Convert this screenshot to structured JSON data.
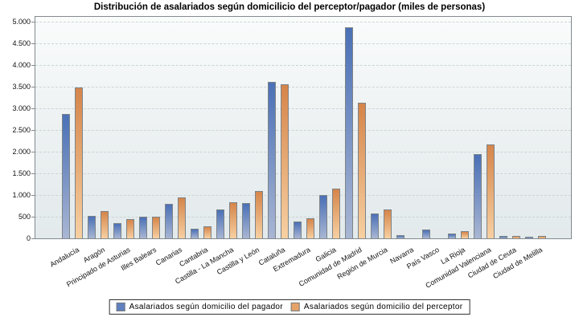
{
  "title": "Distribución de asalariados según domicilicio del perceptor/pagador (miles de personas)",
  "colors": {
    "bar_pagador_top": "#4a70b6",
    "bar_pagador_bottom": "#a9b6d3",
    "bar_perceptor_top": "#d5854a",
    "bar_perceptor_bottom": "#f7d0a2",
    "legend_pagador": "#6080bf",
    "legend_perceptor": "#e5a268",
    "bar_border": "#7d8488",
    "plot_border": "#828a8e",
    "gridline": "#ccd4d6"
  },
  "legend": {
    "items": [
      {
        "label": "Asalariados según domicilio del pagador"
      },
      {
        "label": "Asalariados según domicilio del perceptor"
      }
    ]
  },
  "y_axis": {
    "tick_labels": [
      "0",
      "500",
      "1.000",
      "1.500",
      "2.000",
      "2.500",
      "3.000",
      "3.500",
      "4.000",
      "4.500",
      "5.000"
    ],
    "min": 0,
    "max": 5000,
    "step": 500
  },
  "chart_data": {
    "type": "bar",
    "title": "Distribución de asalariados según domicilicio del perceptor/pagador (miles de personas)",
    "xlabel": "",
    "ylabel": "miles de personas",
    "ylim": [
      0,
      5000
    ],
    "grid": true,
    "legend_position": "bottom",
    "categories": [
      "Andalucía",
      "Aragón",
      "Principado de Asturias",
      "Illes Balears",
      "Canarias",
      "Cantabria",
      "Castilla - La Mancha",
      "Castilla y León",
      "Cataluña",
      "Extremadura",
      "Galicia",
      "Comunidad de Madrid",
      "Región de Murcia",
      "Navarra",
      "País Vasco",
      "La Rioja",
      "Comunidad Valenciana",
      "Ciudad de Ceuta",
      "Ciudad de Melilla"
    ],
    "series": [
      {
        "name": "Asalariados según domicilio del pagador",
        "values": [
          2850,
          505,
          340,
          475,
          780,
          210,
          640,
          790,
          3590,
          370,
          990,
          4860,
          560,
          60,
          190,
          100,
          1920,
          40,
          20
        ]
      },
      {
        "name": "Asalariados según domicilio del perceptor",
        "values": [
          3460,
          610,
          430,
          490,
          920,
          255,
          810,
          1070,
          3530,
          450,
          1130,
          3120,
          640,
          0,
          0,
          150,
          2140,
          45,
          45
        ]
      }
    ]
  }
}
